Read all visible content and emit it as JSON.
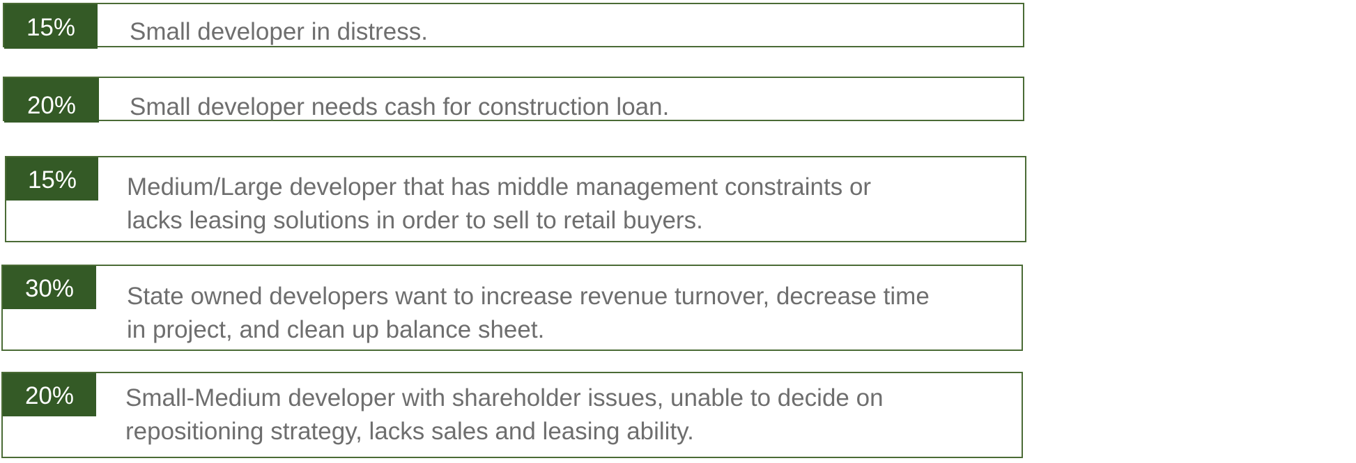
{
  "colors": {
    "badge_background": "#345a26",
    "border": "#4a6b35",
    "badge_text": "#ffffff",
    "description_text": "#6e6e6e"
  },
  "segments": [
    {
      "percent": "15%",
      "description_lines": [
        "Small developer in distress."
      ]
    },
    {
      "percent": "20%",
      "description_lines": [
        "Small developer needs cash for construction loan."
      ]
    },
    {
      "percent": "15%",
      "description_lines": [
        "Medium/Large developer that has middle management constraints or",
        "lacks leasing solutions in order to sell to retail buyers."
      ]
    },
    {
      "percent": "30%",
      "description_lines": [
        "State owned developers want to increase revenue turnover, decrease time",
        "in project, and clean up balance sheet."
      ]
    },
    {
      "percent": "20%",
      "description_lines": [
        "Small-Medium developer with shareholder issues, unable to decide on",
        "repositioning strategy, lacks sales and leasing ability."
      ]
    }
  ]
}
